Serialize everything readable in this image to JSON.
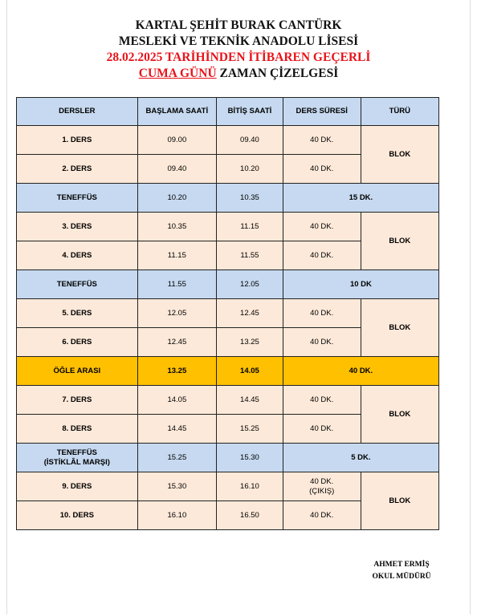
{
  "header": {
    "lines": [
      "KARTAL ŞEHİT BURAK CANTÜRK",
      "MESLEKİ VE TEKNİK ANADOLU LİSESİ",
      "28.02.2025 TARİHİNDEN İTİBAREN GEÇERLİ"
    ],
    "day": "CUMA GÜNÜ",
    "rest": "ZAMAN ÇİZELGESİ"
  },
  "table": {
    "columns": [
      "DERSLER",
      "BAŞLAMA SAATİ",
      "BİTİŞ SAATİ",
      "DERS SÜRESİ",
      "TÜRÜ"
    ],
    "schedule": [
      {
        "lessons": [
          [
            "1. DERS",
            "09.00",
            "09.40",
            "40 DK."
          ],
          [
            "2. DERS",
            "09.40",
            "10.20",
            "40 DK."
          ]
        ],
        "type": "BLOK"
      },
      {
        "break": [
          "TENEFFÜS",
          "10.20",
          "10.35",
          "15 DK."
        ],
        "color": "#c6d9f0"
      },
      {
        "lessons": [
          [
            "3. DERS",
            "10.35",
            "11.15",
            "40 DK."
          ],
          [
            "4. DERS",
            "11.15",
            "11.55",
            "40 DK."
          ]
        ],
        "type": "BLOK"
      },
      {
        "break": [
          "TENEFFÜS",
          "11.55",
          "12.05",
          "10 DK"
        ],
        "color": "#c6d9f0"
      },
      {
        "lessons": [
          [
            "5. DERS",
            "12.05",
            "12.45",
            "40 DK."
          ],
          [
            "6. DERS",
            "12.45",
            "13.25",
            "40 DK."
          ]
        ],
        "type": "BLOK"
      },
      {
        "break": [
          "ÖĞLE ARASI",
          "13.25",
          "14.05",
          "40 DK."
        ],
        "color": "#ffc000"
      },
      {
        "lessons": [
          [
            "7. DERS",
            "14.05",
            "14.45",
            "40 DK."
          ],
          [
            "8. DERS",
            "14.45",
            "15.25",
            "40 DK."
          ]
        ],
        "type": "BLOK"
      },
      {
        "break": [
          "TENEFFÜS\n(İSTİKLÂL MARŞI)",
          "15.25",
          "15.30",
          "5 DK."
        ],
        "color": "#c6d9f0"
      },
      {
        "lessons": [
          [
            "9. DERS",
            "15.30",
            "16.10",
            "40 DK.\n(ÇIKIŞ)"
          ],
          [
            "10. DERS",
            "16.10",
            "16.50",
            "40 DK."
          ]
        ],
        "type": "BLOK"
      }
    ]
  },
  "signature": {
    "name": "AHMET ERMİŞ",
    "title": "OKUL MÜDÜRÜ"
  }
}
